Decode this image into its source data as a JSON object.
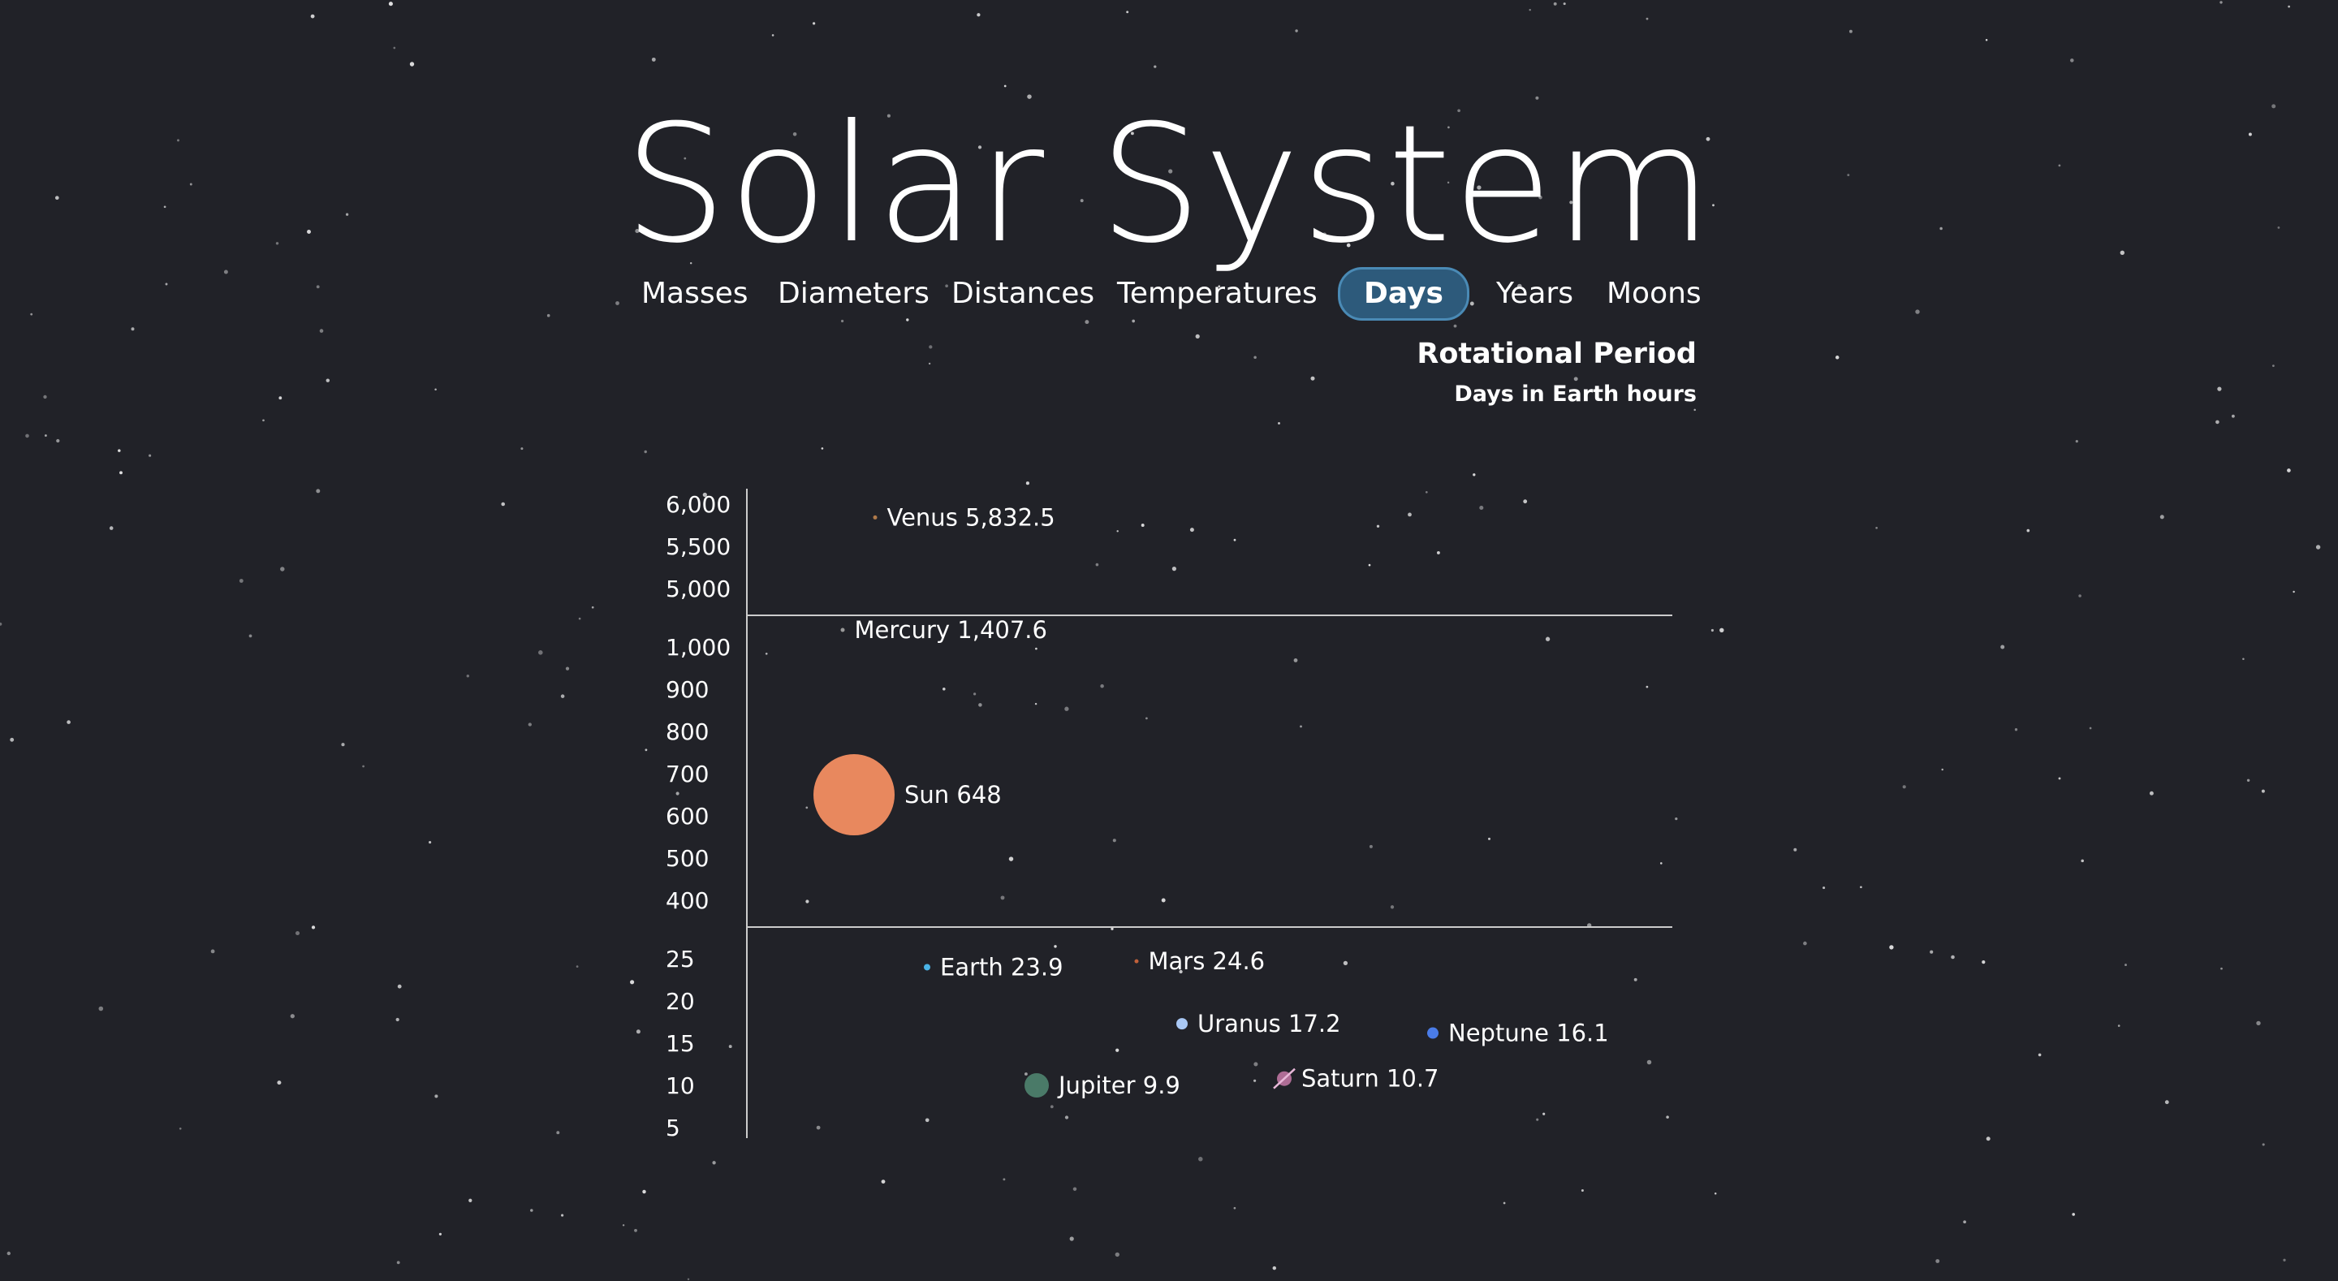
{
  "title": "Solar System",
  "nav": {
    "items": [
      "Masses",
      "Diameters",
      "Distances",
      "Temperatures",
      "Days",
      "Years",
      "Moons"
    ],
    "active": "Days"
  },
  "chart_heading": "Rotational Period",
  "chart_subheading": "Days in Earth hours",
  "colors": {
    "background": "#212228",
    "active_tab_fill": "#2d5a7b",
    "active_tab_border": "#4a8ab5",
    "sun": "#e8885e",
    "jupiter": "#4a7a68",
    "uranus": "#a9c8f5",
    "neptune": "#4a7ce8",
    "saturn": "#c77aa8",
    "earth": "#4ab3e6",
    "axis": "#cccccc"
  },
  "chart_data": {
    "type": "scatter",
    "title": "Rotational Period",
    "subtitle": "Days in Earth hours",
    "y_segments": [
      {
        "ylim": [
          5000,
          6000
        ],
        "ticks": [
          "6,000",
          "5,500",
          "5,000"
        ],
        "tick_values": [
          6000,
          5500,
          5000
        ]
      },
      {
        "ylim": [
          400,
          1000
        ],
        "ticks": [
          "1,000",
          "900",
          "800",
          "700",
          "600",
          "500",
          "400"
        ],
        "tick_values": [
          1000,
          900,
          800,
          700,
          600,
          500,
          400
        ]
      },
      {
        "ylim": [
          5,
          25
        ],
        "ticks": [
          "25",
          "20",
          "15",
          "10",
          "5"
        ],
        "tick_values": [
          25,
          20,
          15,
          10,
          5
        ]
      }
    ],
    "points": [
      {
        "name": "Venus",
        "value": 5832.5,
        "label": "Venus 5,832.5",
        "segment": 0,
        "color": "#b07a4a",
        "size": "tiny"
      },
      {
        "name": "Mercury",
        "value": 1407.6,
        "label": "Mercury 1,407.6",
        "segment": 1,
        "color": "#999999",
        "size": "tiny"
      },
      {
        "name": "Sun",
        "value": 648,
        "label": "Sun 648",
        "segment": 1,
        "color": "#e8885e",
        "size": "huge"
      },
      {
        "name": "Earth",
        "value": 23.9,
        "label": "Earth 23.9",
        "segment": 2,
        "color": "#4ab3e6",
        "size": "small"
      },
      {
        "name": "Mars",
        "value": 24.6,
        "label": "Mars 24.6",
        "segment": 2,
        "color": "#c0603a",
        "size": "tiny"
      },
      {
        "name": "Uranus",
        "value": 17.2,
        "label": "Uranus 17.2",
        "segment": 2,
        "color": "#a9c8f5",
        "size": "medium"
      },
      {
        "name": "Neptune",
        "value": 16.1,
        "label": "Neptune 16.1",
        "segment": 2,
        "color": "#4a7ce8",
        "size": "medium"
      },
      {
        "name": "Saturn",
        "value": 10.7,
        "label": "Saturn 10.7",
        "segment": 2,
        "color": "#c77aa8",
        "size": "ringed"
      },
      {
        "name": "Jupiter",
        "value": 9.9,
        "label": "Jupiter 9.9",
        "segment": 2,
        "color": "#4a7a68",
        "size": "large"
      }
    ]
  }
}
